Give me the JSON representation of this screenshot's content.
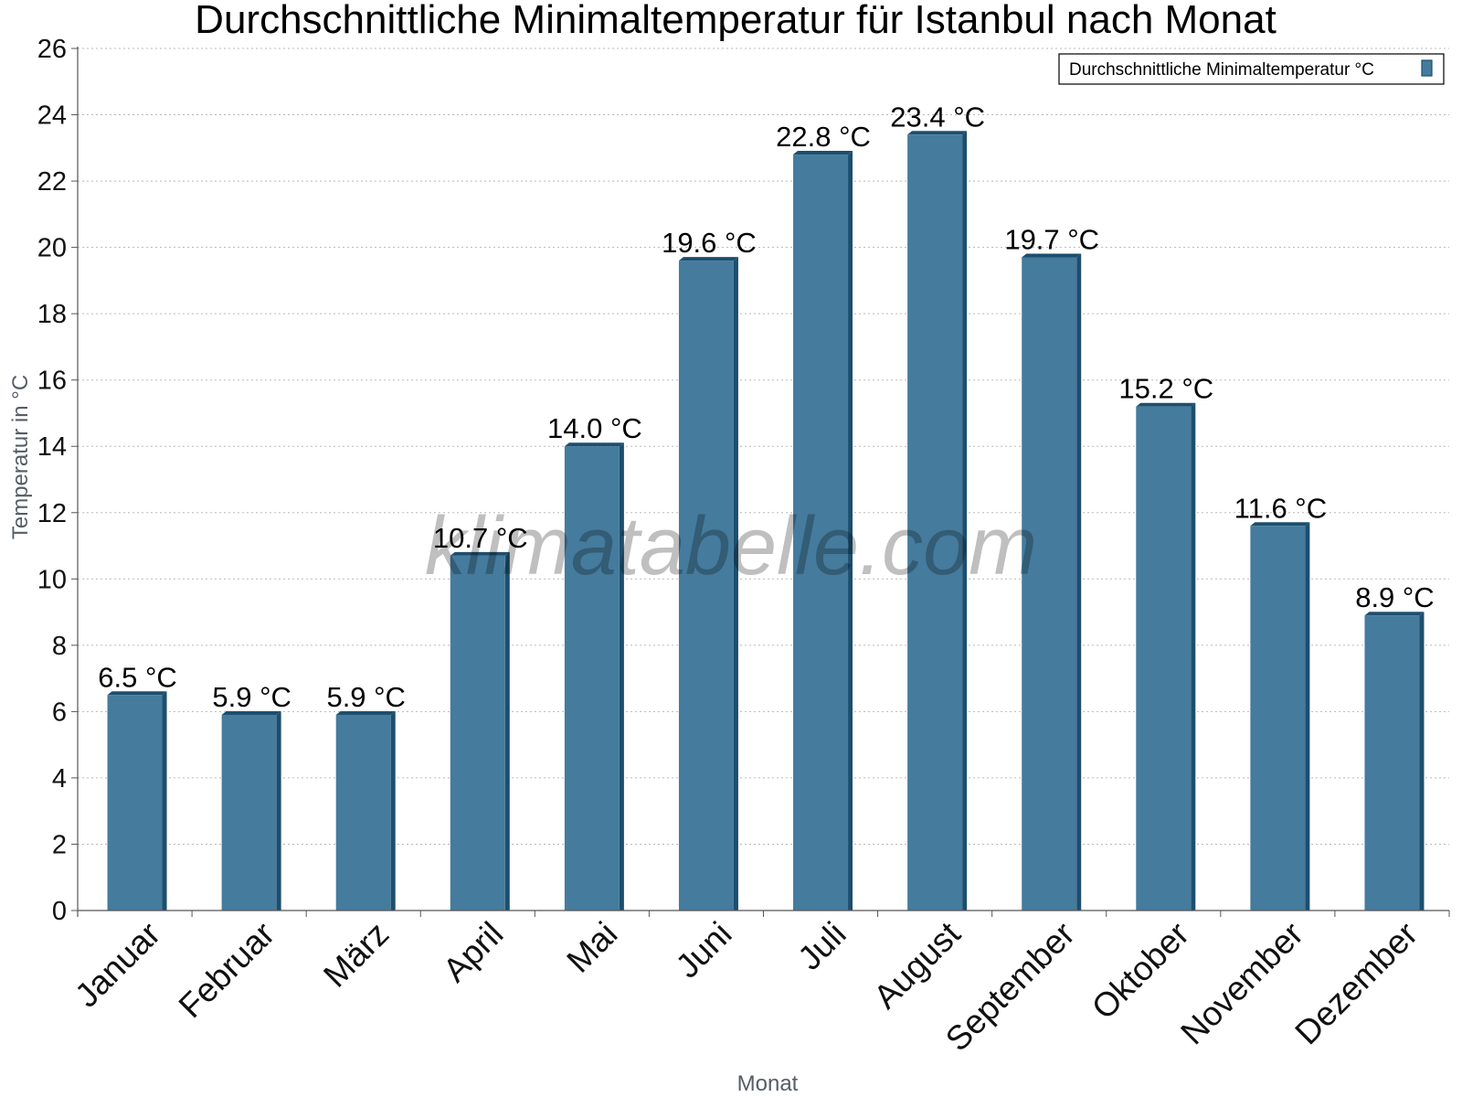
{
  "chart_data": {
    "type": "bar",
    "title": "Durchschnittliche Minimaltemperatur für Istanbul nach Monat",
    "xlabel": "Monat",
    "ylabel": "Temperatur in °C",
    "categories": [
      "Januar",
      "Februar",
      "März",
      "April",
      "Mai",
      "Juni",
      "Juli",
      "August",
      "September",
      "Oktober",
      "November",
      "Dezember"
    ],
    "series": [
      {
        "name": "Durchschnittliche Minimaltemperatur °C",
        "values": [
          6.5,
          5.9,
          5.9,
          10.7,
          14.0,
          19.6,
          22.8,
          23.4,
          19.7,
          15.2,
          11.6,
          8.9
        ],
        "labels": [
          "6.5 °C",
          "5.9 °C",
          "5.9 °C",
          "10.7 °C",
          "14.0 °C",
          "19.6 °C",
          "22.8 °C",
          "23.4 °C",
          "19.7 °C",
          "15.2 °C",
          "11.6 °C",
          "8.9 °C"
        ]
      }
    ],
    "ylim": [
      0,
      26
    ],
    "yticks": [
      0,
      2,
      4,
      6,
      8,
      10,
      12,
      14,
      16,
      18,
      20,
      22,
      24,
      26
    ],
    "grid": true,
    "legend_position": "top-right",
    "colors": {
      "bar": "#457b9d",
      "bar_dark": "#1d4e6e"
    },
    "watermark": "klimatabelle.com"
  }
}
